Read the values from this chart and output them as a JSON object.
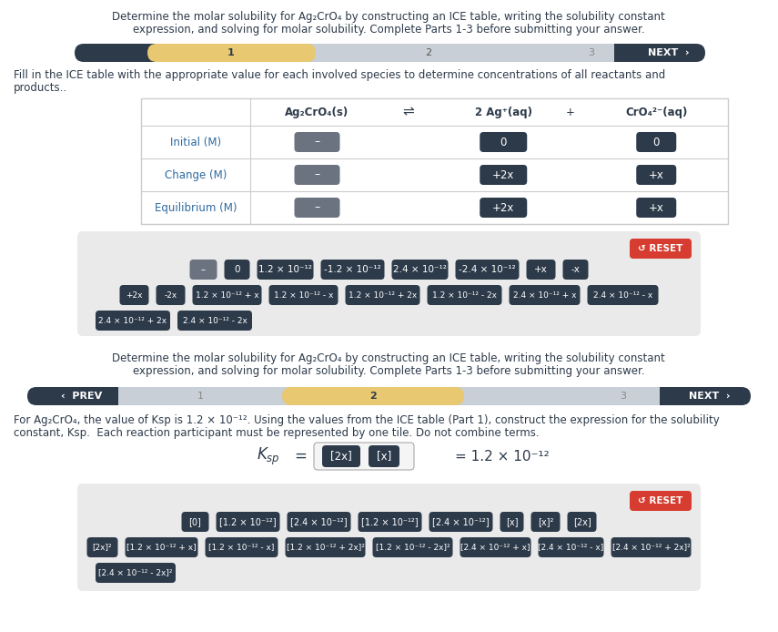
{
  "bg_color": "#ffffff",
  "panel_bg": "#eaeaea",
  "dark_blue": "#2d3a4a",
  "gold": "#e8c870",
  "red_reset": "#d63c2f",
  "gray_btn": "#6b7280",
  "text_dark": "#2d3a4a",
  "text_blue": "#2d6a9f",
  "text_white": "#ffffff",
  "title1a": "Determine the molar solubility for Ag₂CrO₄ by constructing an ICE table, writing the solubility constant",
  "title1b": "expression, and solving for molar solubility. Complete Parts 1-3 before submitting your answer.",
  "fill_text1": "Fill in the ICE table with the appropriate value for each involved species to determine concentrations of all reactants and",
  "fill_text2": "products..",
  "col_headers": [
    "Ag₂CrO₄(s)",
    "⇌",
    "2 Ag⁺(aq)",
    "+",
    "CrO₄²⁻(aq)"
  ],
  "row_labels": [
    "Initial (M)",
    "Change (M)",
    "Equilibrium (M)"
  ],
  "ag2cro4_vals": [
    "–",
    "–",
    "–"
  ],
  "ag_vals": [
    "0",
    "+2x",
    "+2x"
  ],
  "cro4_vals": [
    "0",
    "+x",
    "+x"
  ],
  "tile_row1": [
    "–",
    "0",
    "1.2 × 10⁻¹²",
    "-1.2 × 10⁻¹²",
    "2.4 × 10⁻¹²",
    "-2.4 × 10⁻¹²",
    "+x",
    "-x"
  ],
  "tile_row1_colors": [
    "gray",
    "blue",
    "blue",
    "blue",
    "blue",
    "blue",
    "blue",
    "blue"
  ],
  "tile_row2": [
    "+2x",
    "-2x",
    "1.2 × 10⁻¹² + x",
    "1.2 × 10⁻¹² - x",
    "1.2 × 10⁻¹² + 2x",
    "1.2 × 10⁻¹² - 2x",
    "2.4 × 10⁻¹² + x",
    "2.4 × 10⁻¹² - x"
  ],
  "tile_row3": [
    "2.4 × 10⁻¹² + 2x",
    "2.4 × 10⁻¹² - 2x"
  ],
  "title2a": "Determine the molar solubility for Ag₂CrO₄ by constructing an ICE table, writing the solubility constant",
  "title2b": "expression, and solving for molar solubility. Complete Parts 1-3 before submitting your answer.",
  "ksp_text1": "For Ag₂CrO₄, the value of Ksp is 1.2 × 10⁻¹². Using the values from the ICE table (Part 1), construct the expression for the solubility",
  "ksp_text2": "constant, Ksp.  Each reaction participant must be represented by one tile. Do not combine terms.",
  "ksp_tile1": "[2x]",
  "ksp_tile2": "[x]",
  "ksp_value": "= 1.2 × 10⁻¹²",
  "p2_row1": [
    "[0]",
    "[1.2 × 10⁻¹²]",
    "[2.4 × 10⁻¹²]",
    "[1.2 × 10⁻¹²]",
    "[2.4 × 10⁻¹²]",
    "[x]",
    "[x]²",
    "[2x]"
  ],
  "p2_row2": [
    "[2x]²",
    "[1.2 × 10⁻¹² + x]",
    "[1.2 × 10⁻¹² - x]",
    "[1.2 × 10⁻¹² + 2x]²",
    "[1.2 × 10⁻¹² - 2x]²",
    "[2.4 × 10⁻¹² + x]",
    "[2.4 × 10⁻¹² - x]",
    "[2.4 × 10⁻¹² + 2x]²"
  ],
  "p2_row3": [
    "[2.4 × 10⁻¹² - 2x]²"
  ]
}
